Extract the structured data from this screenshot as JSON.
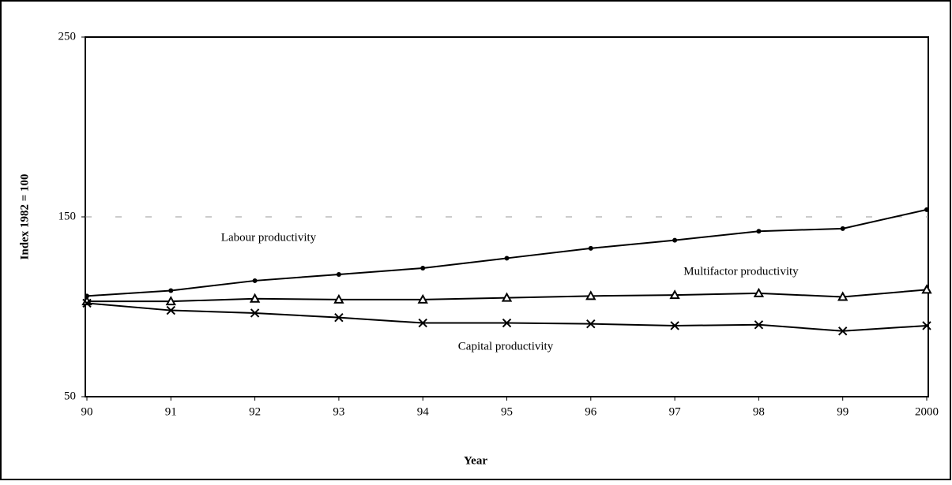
{
  "chart_data": {
    "type": "line",
    "xlabel": "Year",
    "ylabel": "Index 1982 = 100",
    "categories": [
      "90",
      "91",
      "92",
      "93",
      "94",
      "95",
      "96",
      "97",
      "98",
      "99",
      "2000"
    ],
    "series": [
      {
        "name": "Labour productivity",
        "color": "#000000",
        "marker": "dot",
        "values": [
          106,
          109,
          114.5,
          118,
          121.5,
          127,
          132.5,
          137,
          142,
          143.5,
          154
        ]
      },
      {
        "name": "Multifactor productivity",
        "color": "#000000",
        "marker": "triangle",
        "values": [
          103,
          103,
          104.5,
          104,
          104,
          105,
          106,
          106.5,
          107.5,
          105.5,
          109.5
        ]
      },
      {
        "name": "Capital productivity",
        "color": "#000000",
        "marker": "x",
        "values": [
          102,
          98,
          96.5,
          94,
          91,
          91,
          90.5,
          89.5,
          90,
          86.5,
          89.5
        ]
      }
    ],
    "ylim": [
      50,
      250
    ],
    "yticks": [
      50,
      150,
      250
    ],
    "grid": true
  }
}
